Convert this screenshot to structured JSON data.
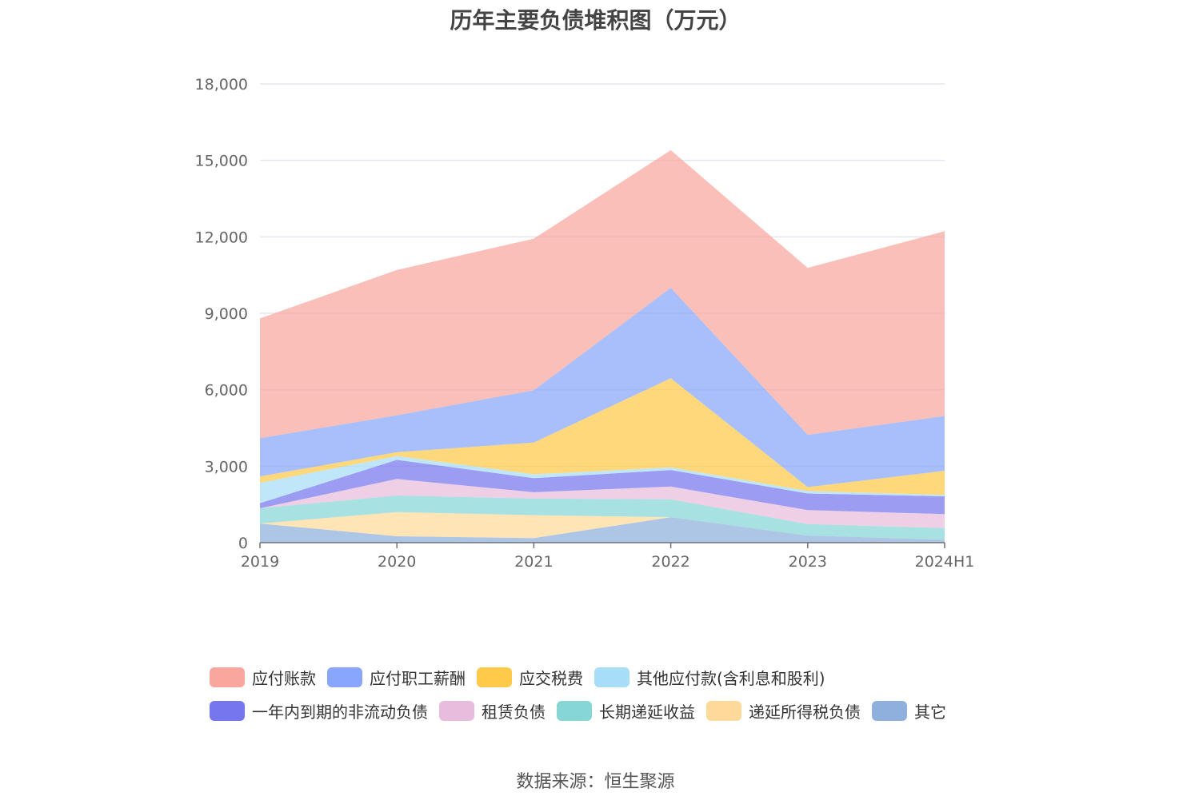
{
  "chart_data": {
    "type": "area",
    "stacked": true,
    "title": "历年主要负债堆积图（万元）",
    "categories": [
      "2019",
      "2020",
      "2021",
      "2022",
      "2023",
      "2024H1"
    ],
    "ylim": [
      0,
      18000
    ],
    "yticks": [
      "0",
      "3,000",
      "6,000",
      "9,000",
      "12,000",
      "15,000",
      "18,000"
    ],
    "ytick_values": [
      0,
      3000,
      6000,
      9000,
      12000,
      15000,
      18000
    ],
    "grid": true,
    "legend_position": "bottom",
    "series": [
      {
        "name": "其它",
        "color": "#8FB0DC",
        "values": [
          750,
          250,
          180,
          1000,
          280,
          120
        ]
      },
      {
        "name": "递延所得税负债",
        "color": "#FFD99A",
        "values": [
          0,
          950,
          900,
          0,
          0,
          0
        ]
      },
      {
        "name": "长期递延收益",
        "color": "#86D6D6",
        "values": [
          600,
          650,
          650,
          700,
          450,
          450
        ]
      },
      {
        "name": "租赁负债",
        "color": "#E8BCDD",
        "values": [
          0,
          650,
          250,
          500,
          550,
          550
        ]
      },
      {
        "name": "一年内到期的非流动负债",
        "color": "#7676EE",
        "values": [
          200,
          750,
          550,
          650,
          650,
          700
        ]
      },
      {
        "name": "其他应付款(含利息和股利)",
        "color": "#A8DDF7",
        "values": [
          800,
          150,
          150,
          100,
          100,
          50
        ]
      },
      {
        "name": "应交税费",
        "color": "#FFC94A",
        "values": [
          250,
          150,
          1250,
          3500,
          150,
          950
        ]
      },
      {
        "name": "应付职工薪酬",
        "color": "#88A6FB",
        "values": [
          1500,
          1450,
          2050,
          3550,
          2050,
          2150
        ]
      },
      {
        "name": "应付账款",
        "color": "#F9A69E",
        "values": [
          4700,
          5700,
          5950,
          5400,
          6550,
          7250
        ]
      }
    ],
    "legend_order": [
      "应付账款",
      "应付职工薪酬",
      "应交税费",
      "其他应付款(含利息和股利)",
      "一年内到期的非流动负债",
      "租赁负债",
      "长期递延收益",
      "递延所得税负债",
      "其它"
    ]
  },
  "source": "数据来源：恒生聚源"
}
